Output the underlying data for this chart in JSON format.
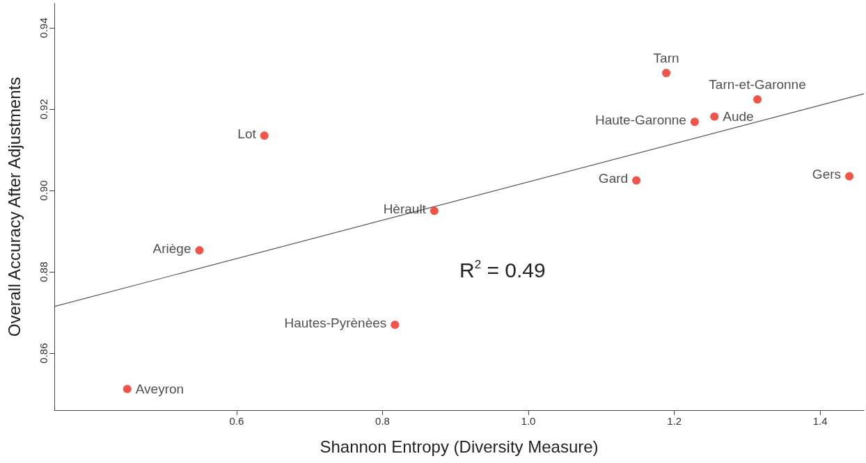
{
  "chart_data": {
    "type": "scatter",
    "xlabel": "Shannon Entropy (Diversity Measure)",
    "ylabel": "Overall Accuracy After Adjustments",
    "series": [
      {
        "marker": "circle",
        "color": "#ee2a1b",
        "x": [
          0.45,
          0.549,
          0.638,
          0.817,
          0.871,
          1.148,
          1.228,
          1.189,
          1.255,
          1.314,
          1.44
        ],
        "values": [
          0.8512,
          0.8853,
          0.9135,
          0.867,
          0.895,
          0.9025,
          0.9169,
          0.9289,
          0.9182,
          0.9224,
          0.9035
        ]
      },
      {
        "type": "line",
        "color": "#555555",
        "x": [
          0.35,
          1.46
        ],
        "values": [
          0.8715,
          0.9238
        ]
      }
    ],
    "xlim": [
      0.35,
      1.46
    ],
    "xticks": [
      0.6,
      0.8,
      {
        "value": 1,
        "label": "1.0"
      },
      1.2,
      1.4
    ],
    "ylim": [
      0.846,
      0.946
    ],
    "yticks": [
      0.86,
      0.88,
      {
        "value": 0.9,
        "label": "0.90"
      },
      0.92,
      0.94
    ],
    "grid": false,
    "annotations": [
      {
        "text": "Aveyron",
        "x": 0.45,
        "y": 0.8512
      },
      {
        "text": "Ariège",
        "x": 0.549,
        "y": 0.8853
      },
      {
        "text": "Lot",
        "x": 0.638,
        "y": 0.9135
      },
      {
        "text": "Hautes-Pyrènèes",
        "x": 0.817,
        "y": 0.867
      },
      {
        "text": "Hèrault",
        "x": 0.871,
        "y": 0.895
      },
      {
        "text": "Gard",
        "x": 1.148,
        "y": 0.9025
      },
      {
        "text": "Haute-Garonne",
        "x": 1.228,
        "y": 0.9169
      },
      {
        "text": "Tarn",
        "x": 1.189,
        "y": 0.9289
      },
      {
        "text": "Aude",
        "x": 1.255,
        "y": 0.9182
      },
      {
        "text": "Tarn-et-Garonne",
        "x": 1.314,
        "y": 0.9224
      },
      {
        "text": "Gers",
        "x": 1.44,
        "y": 0.9035
      },
      "R$^{2}$ = 0.49"
    ]
  }
}
